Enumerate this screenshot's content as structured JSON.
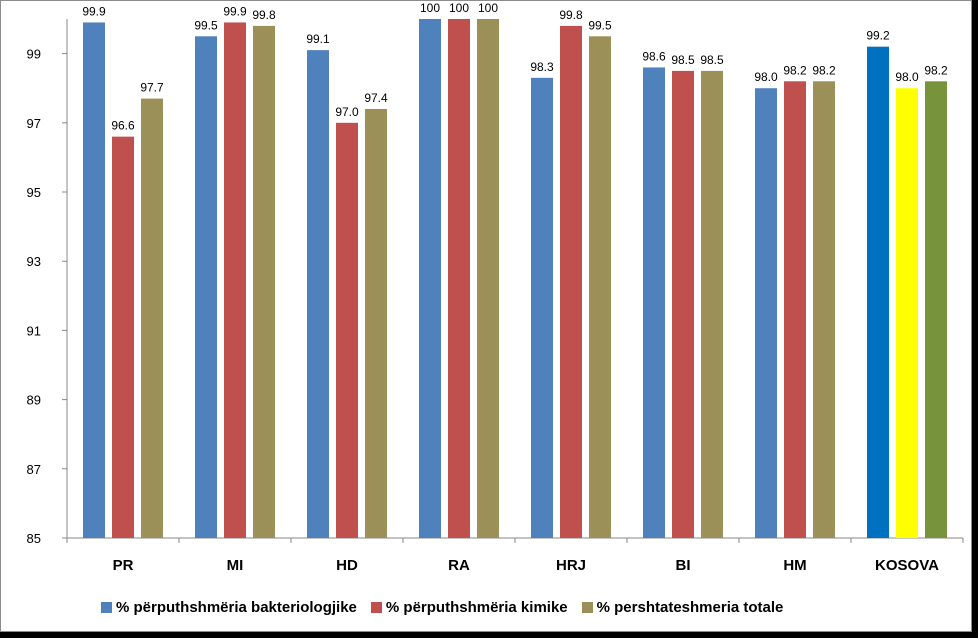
{
  "chart_data": {
    "type": "bar",
    "categories": [
      "PR",
      "MI",
      "HD",
      "RA",
      "HRJ",
      "BI",
      "HM",
      "KOSOVA"
    ],
    "series": [
      {
        "name": "% përputhshmëria bakteriologjike",
        "values": [
          99.9,
          99.5,
          99.1,
          100,
          98.3,
          98.6,
          98.0,
          99.2
        ],
        "labels": [
          "99.9",
          "99.5",
          "99.1",
          "100",
          "98.3",
          "98.6",
          "98.0",
          "99.2"
        ],
        "color": "#4f81bd"
      },
      {
        "name": "% përputhshmëria kimike",
        "values": [
          96.6,
          99.9,
          97.0,
          100,
          99.8,
          98.5,
          98.2,
          98.0
        ],
        "labels": [
          "96.6",
          "99.9",
          "97.0",
          "100",
          "99.8",
          "98.5",
          "98.2",
          "98.0"
        ],
        "color": "#c0504d"
      },
      {
        "name": "% pershtateshmeria totale",
        "values": [
          97.7,
          99.8,
          97.4,
          100,
          99.5,
          98.5,
          98.2,
          98.2
        ],
        "labels": [
          "97.7",
          "99.8",
          "97.4",
          "100",
          "99.5",
          "98.5",
          "98.2",
          "98.2"
        ],
        "color": "#9b9057"
      }
    ],
    "highlight_colors": {
      "KOSOVA": [
        "#0070c0",
        "#ffff00",
        "#77933c"
      ]
    },
    "yticks": [
      85,
      87,
      89,
      91,
      93,
      95,
      97,
      99
    ],
    "ylim": [
      85,
      100
    ],
    "grid": false,
    "legend_position": "bottom"
  }
}
